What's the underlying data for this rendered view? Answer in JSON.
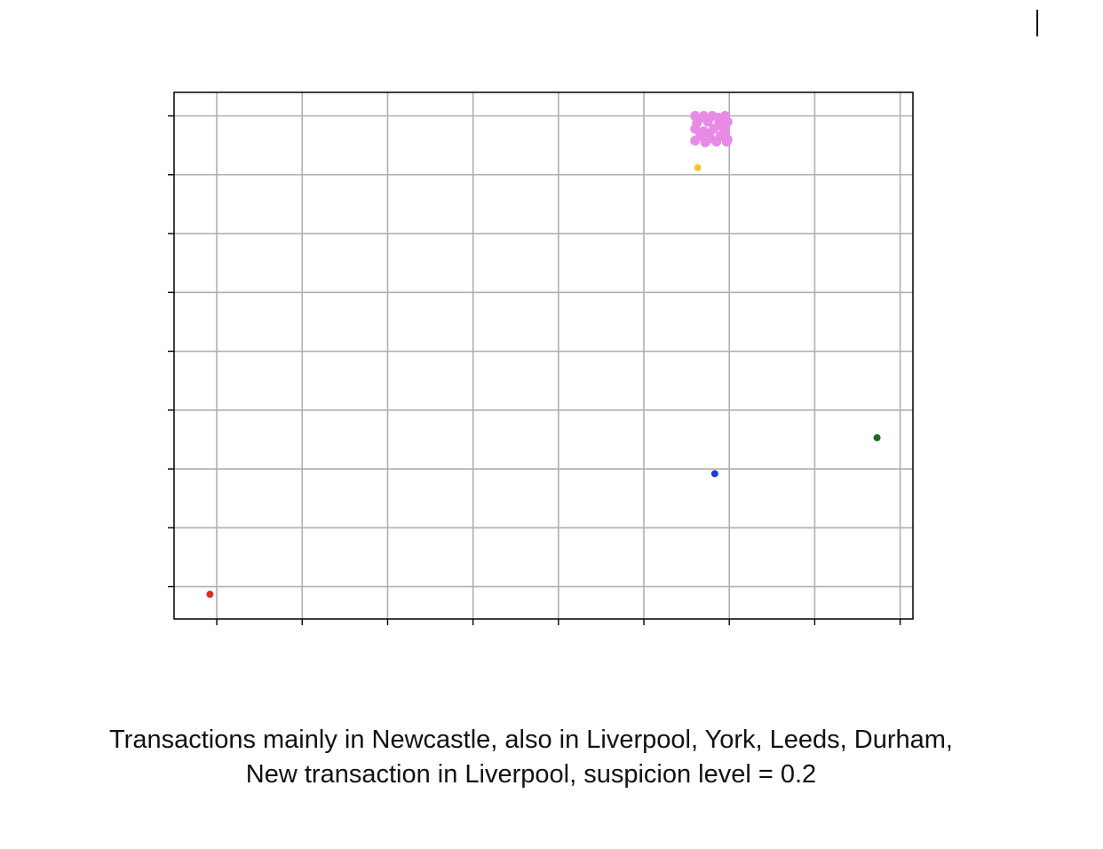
{
  "chart_data": {
    "type": "scatter",
    "title": "",
    "xlabel": "",
    "ylabel": "",
    "grid": true,
    "xlim": [
      -0.5,
      8.15
    ],
    "ylim": [
      -0.55,
      8.4
    ],
    "x_ticks": [
      0,
      1,
      2,
      3,
      4,
      5,
      6,
      7,
      8
    ],
    "y_ticks": [
      0,
      1,
      2,
      3,
      4,
      5,
      6,
      7,
      8
    ],
    "series": [
      {
        "color": "#e88ae8",
        "points": [
          [
            5.6,
            8.0
          ],
          [
            5.7,
            8.0
          ],
          [
            5.8,
            8.0
          ],
          [
            5.95,
            8.0
          ],
          [
            5.62,
            7.88
          ],
          [
            5.75,
            7.9
          ],
          [
            5.88,
            7.86
          ],
          [
            5.98,
            7.9
          ],
          [
            5.6,
            7.78
          ],
          [
            5.7,
            7.74
          ],
          [
            5.82,
            7.78
          ],
          [
            5.95,
            7.75
          ],
          [
            5.66,
            7.66
          ],
          [
            5.78,
            7.62
          ],
          [
            5.9,
            7.66
          ],
          [
            5.98,
            7.6
          ],
          [
            5.6,
            7.58
          ],
          [
            5.72,
            7.55
          ],
          [
            5.85,
            7.56
          ],
          [
            5.97,
            7.56
          ],
          [
            5.65,
            7.95
          ],
          [
            5.87,
            7.97
          ],
          [
            5.76,
            7.7
          ],
          [
            5.92,
            7.82
          ]
        ]
      },
      {
        "color": "#f2c53d",
        "points": [
          [
            5.63,
            7.12
          ]
        ]
      },
      {
        "color": "#1a3ae8",
        "points": [
          [
            5.83,
            1.92
          ]
        ]
      },
      {
        "color": "#1e6b1e",
        "points": [
          [
            7.73,
            2.53
          ]
        ]
      },
      {
        "color": "#e02b2b",
        "points": [
          [
            -0.08,
            -0.13
          ]
        ]
      }
    ]
  },
  "caption": {
    "line1": "Transactions mainly in Newcastle, also in Liverpool, York, Leeds, Durham,",
    "line2": "New transaction in Liverpool, suspicion level = 0.2"
  }
}
